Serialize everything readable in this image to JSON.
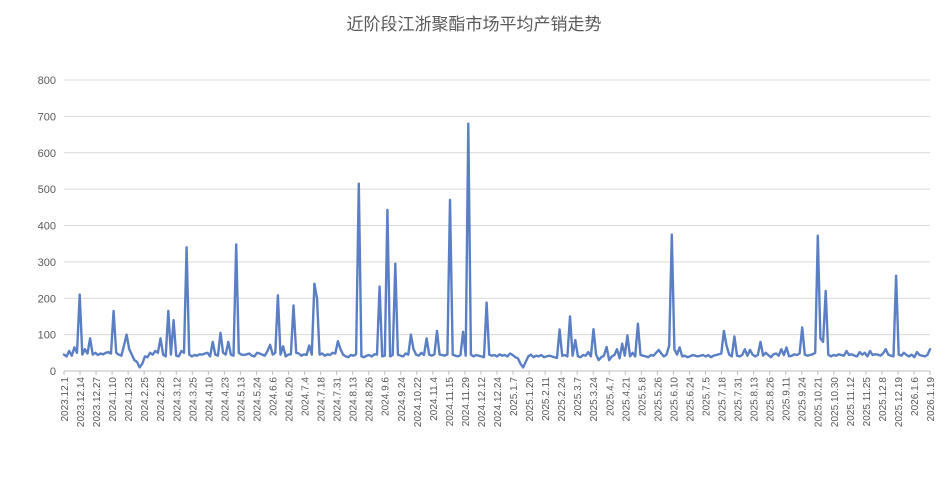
{
  "chart_data": {
    "type": "line",
    "title": "近阶段江浙聚酯市场平均产销走势",
    "xlabel": "",
    "ylabel": "",
    "ylim": [
      0,
      800
    ],
    "yticks": [
      0,
      100,
      200,
      300,
      400,
      500,
      600,
      700,
      800
    ],
    "grid": true,
    "legend": "none",
    "color": "#5B7FC4",
    "x_tick_labels": [
      "2023.12.1",
      "2023.12.14",
      "2023.12.27",
      "2024.1.10",
      "2024.1.23",
      "2024.2.25",
      "2024.2.28",
      "2024.3.12",
      "2024.3.25",
      "2024.4.10",
      "2024.4.23",
      "2024.5.13",
      "2024.5.24",
      "2024.6.6",
      "2024.6.20",
      "2024.7.4",
      "2024.7.18",
      "2024.7.31",
      "2024.8.13",
      "2024.8.26",
      "2024.9.6",
      "2024.9.24",
      "2024.10.22",
      "2024.11.4",
      "2024.11.15",
      "2024.11.29",
      "2024.12.12",
      "2024.12.24",
      "2025.1.7",
      "2025.1.20",
      "2025.2.11",
      "2025.2.24",
      "2025.3.7",
      "2025.3.24",
      "2025.4.7",
      "2025.4.21",
      "2025.5.8",
      "2025.5.26",
      "2025.6.10",
      "2025.6.24",
      "2025.7.5",
      "2025.7.18",
      "2025.7.31",
      "2025.8.13",
      "2025.8.26",
      "2025.9.11",
      "2025.9.24",
      "2025.10.21",
      "2025.10.30",
      "2025.11.12",
      "2025.11.25",
      "2025.12.8",
      "2025.12.19",
      "2026.1.6",
      "2026.1.19"
    ],
    "series": [
      {
        "values": [
          45,
          40,
          55,
          42,
          65,
          50,
          210,
          45,
          60,
          48,
          90,
          45,
          50,
          44,
          48,
          46,
          50,
          52,
          48,
          165,
          50,
          45,
          42,
          70,
          100,
          60,
          45,
          30,
          25,
          10,
          20,
          40,
          38,
          50,
          45,
          55,
          50,
          90,
          45,
          40,
          165,
          45,
          140,
          42,
          40,
          55,
          50,
          340,
          45,
          40,
          44,
          42,
          46,
          45,
          48,
          50,
          40,
          80,
          45,
          42,
          105,
          50,
          45,
          80,
          45,
          42,
          348,
          50,
          45,
          44,
          46,
          48,
          42,
          40,
          50,
          48,
          45,
          42,
          55,
          72,
          45,
          50,
          208,
          45,
          68,
          40,
          45,
          46,
          180,
          50,
          48,
          42,
          46,
          44,
          70,
          45,
          240,
          200,
          45,
          48,
          42,
          46,
          44,
          50,
          48,
          82,
          60,
          45,
          40,
          38,
          44,
          42,
          46,
          515,
          40,
          38,
          42,
          44,
          40,
          46,
          45,
          232,
          40,
          42,
          443,
          40,
          44,
          295,
          45,
          42,
          40,
          48,
          45,
          100,
          60,
          45,
          42,
          50,
          44,
          90,
          45,
          42,
          46,
          110,
          45,
          44,
          42,
          46,
          470,
          45,
          42,
          40,
          44,
          108,
          42,
          680,
          45,
          40,
          44,
          42,
          40,
          38,
          188,
          45,
          42,
          44,
          40,
          46,
          42,
          44,
          40,
          48,
          44,
          38,
          35,
          20,
          10,
          25,
          40,
          45,
          38,
          42,
          40,
          44,
          38,
          40,
          42,
          40,
          38,
          36,
          114,
          42,
          44,
          40,
          150,
          42,
          85,
          40,
          38,
          44,
          42,
          52,
          40,
          115,
          45,
          30,
          38,
          42,
          66,
          30,
          40,
          44,
          60,
          35,
          75,
          42,
          98,
          40,
          50,
          40,
          130,
          44,
          42,
          40,
          38,
          44,
          42,
          50,
          58,
          48,
          40,
          45,
          70,
          375,
          60,
          45,
          65,
          40,
          42,
          38,
          40,
          44,
          42,
          40,
          42,
          44,
          40,
          44,
          38,
          42,
          44,
          46,
          48,
          110,
          70,
          45,
          40,
          95,
          42,
          40,
          44,
          60,
          42,
          58,
          45,
          40,
          44,
          80,
          42,
          50,
          44,
          38,
          46,
          48,
          42,
          60,
          44,
          65,
          40,
          42,
          46,
          44,
          48,
          120,
          45,
          42,
          44,
          46,
          50,
          372,
          90,
          80,
          220,
          45,
          40,
          44,
          42,
          46,
          44,
          42,
          55,
          44,
          46,
          42,
          40,
          52,
          45,
          50,
          40,
          55,
          44,
          46,
          45,
          42,
          48,
          60,
          45,
          42,
          40,
          262,
          45,
          42,
          50,
          44,
          40,
          45,
          38,
          52,
          44,
          42,
          40,
          44,
          60
        ]
      }
    ]
  }
}
